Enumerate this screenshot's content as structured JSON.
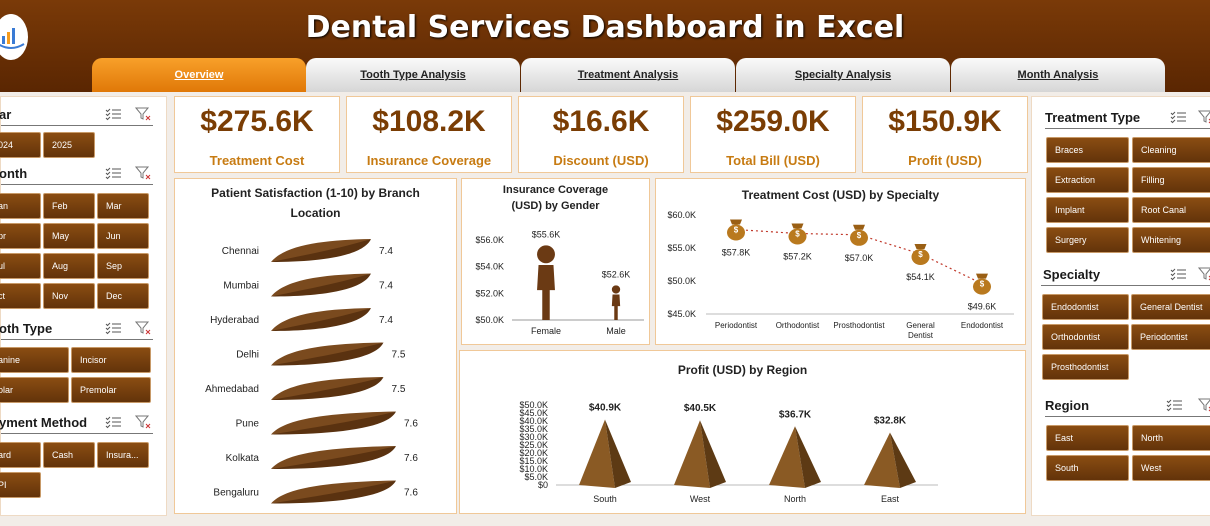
{
  "title": "Dental Services Dashboard in Excel",
  "tabs": [
    "Overview",
    "Tooth Type Analysis",
    "Treatment Analysis",
    "Specialty Analysis",
    "Month Analysis"
  ],
  "left": {
    "year": {
      "title": "ar",
      "items": [
        "024",
        "2025"
      ]
    },
    "month": {
      "title": "onth",
      "items": [
        "an",
        "Feb",
        "Mar",
        "pr",
        "May",
        "Jun",
        "ul",
        "Aug",
        "Sep",
        "ct",
        "Nov",
        "Dec"
      ]
    },
    "tooth": {
      "title": "oth Type",
      "items": [
        "anine",
        "Incisor",
        "olar",
        "Premolar"
      ]
    },
    "payment": {
      "title": "yment Method",
      "items": [
        "ard",
        "Cash",
        "Insura...",
        "PI"
      ]
    }
  },
  "right": {
    "treatment": {
      "title": "Treatment Type",
      "items": [
        "Braces",
        "Cleaning",
        "Extraction",
        "Filling",
        "Implant",
        "Root Canal",
        "Surgery",
        "Whitening"
      ]
    },
    "specialty": {
      "title": "Specialty",
      "items": [
        "Endodontist",
        "General Dentist",
        "Orthodontist",
        "Periodontist",
        "Prosthodontist"
      ]
    },
    "region": {
      "title": "Region",
      "items": [
        "East",
        "North",
        "South",
        "West"
      ]
    }
  },
  "kpis": [
    {
      "value": "$275.6K",
      "label": "Treatment Cost"
    },
    {
      "value": "$108.2K",
      "label": "Insurance Coverage"
    },
    {
      "value": "$16.6K",
      "label": "Discount (USD)"
    },
    {
      "value": "$259.0K",
      "label": "Total Bill (USD)"
    },
    {
      "value": "$150.9K",
      "label": "Profit (USD)"
    }
  ],
  "colors": {
    "brand": "#6b3207",
    "accent": "#f5941f",
    "mark": "#7a4a1e"
  },
  "chart_data": [
    {
      "type": "bar",
      "title": "Patient Satisfaction (1-10) by Branch Location",
      "categories": [
        "Chennai",
        "Mumbai",
        "Hyderabad",
        "Delhi",
        "Ahmedabad",
        "Pune",
        "Kolkata",
        "Bengaluru"
      ],
      "values": [
        7.4,
        7.4,
        7.4,
        7.5,
        7.5,
        7.6,
        7.6,
        7.6
      ],
      "labels": [
        "7.4",
        "7.4",
        "7.4",
        "7.5",
        "7.5",
        "7.6",
        "7.6",
        "7.6"
      ]
    },
    {
      "type": "bar",
      "title": "Insurance Coverage (USD) by Gender",
      "categories": [
        "Female",
        "Male"
      ],
      "values": [
        55.6,
        52.6
      ],
      "labels": [
        "$55.6K",
        "$52.6K"
      ],
      "yticks": [
        "$56.0K",
        "$54.0K",
        "$52.0K",
        "$50.0K"
      ],
      "ylim": [
        50,
        56
      ]
    },
    {
      "type": "line",
      "title": "Treatment Cost (USD) by Specialty",
      "categories": [
        "Periodontist",
        "Orthodontist",
        "Prosthodontist",
        "General Dentist",
        "Endodontist"
      ],
      "values": [
        57.8,
        57.2,
        57.0,
        54.1,
        49.6
      ],
      "labels": [
        "$57.8K",
        "$57.2K",
        "$57.0K",
        "$54.1K",
        "$49.6K"
      ],
      "yticks": [
        "$60.0K",
        "$55.0K",
        "$50.0K",
        "$45.0K"
      ],
      "ylim": [
        45,
        60
      ]
    },
    {
      "type": "bar",
      "title": "Profit (USD) by Region",
      "categories": [
        "South",
        "West",
        "North",
        "East"
      ],
      "values": [
        40.9,
        40.5,
        36.7,
        32.8
      ],
      "labels": [
        "$40.9K",
        "$40.5K",
        "$36.7K",
        "$32.8K"
      ],
      "yticks": [
        "$50.0K",
        "$45.0K",
        "$40.0K",
        "$35.0K",
        "$30.0K",
        "$25.0K",
        "$20.0K",
        "$15.0K",
        "$10.0K",
        "$5.0K",
        "$0"
      ],
      "ylim": [
        0,
        50
      ]
    }
  ]
}
